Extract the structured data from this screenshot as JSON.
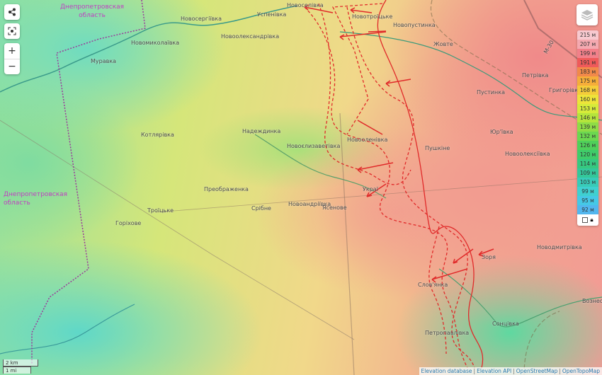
{
  "regions": [
    {
      "line1": "Днепропетровская",
      "line2": "область"
    },
    {
      "line1": "Днепропетровская",
      "line2": "область"
    }
  ],
  "places": [
    "Новосергіївка",
    "Успенівка",
    "Новомиколаївка",
    "Новоолександрівка",
    "Муравка",
    "Новоселівка",
    "Новотроїцьке",
    "Новопустинка",
    "Жовте",
    "Петрівка",
    "Григорівка",
    "Пустинка",
    "М-30",
    "Котлярівка",
    "Надеждинка",
    "Новоєлизаветівка",
    "Новооленівка",
    "Пушкіне",
    "Юр'ївка",
    "Новоолексіївка",
    "Преображенка",
    "Украї",
    "Новоандріївка",
    "Срібне",
    "Ясенове",
    "Троїцьке",
    "Горіхове",
    "Новодмитрівка",
    "Зоря",
    "Слов'янка",
    "Сонцівка",
    "Петропавлівка",
    "Вознесе"
  ],
  "controls": {
    "share_icon": "share-icon",
    "locate_icon": "locate-icon",
    "zoom_in": "+",
    "zoom_out": "−"
  },
  "legend": {
    "items": [
      "215 м",
      "207 м",
      "199 м",
      "191 м",
      "183 м",
      "175 м",
      "168 м",
      "160 м",
      "153 м",
      "146 м",
      "139 м",
      "132 м",
      "126 м",
      "120 м",
      "114 м",
      "109 м",
      "103 м",
      "99 м",
      "95 м",
      "92 м"
    ],
    "colors": [
      "#f7c9cf",
      "#f4a9b0",
      "#f2808a",
      "#ef5a5a",
      "#f2894a",
      "#f5ad3a",
      "#f5cc3a",
      "#eee43a",
      "#d6eb3a",
      "#b5e43c",
      "#8fdc46",
      "#6cd850",
      "#4fd05a",
      "#3fcc6a",
      "#36c880",
      "#34c79a",
      "#38cbb8",
      "#3fd0d0",
      "#45c8e6",
      "#52b6ee"
    ]
  },
  "scale": {
    "km": "2 km",
    "mi": "1 mi"
  },
  "attribution": [
    "Elevation database",
    "Elevation API",
    "OpenStreetMap",
    "OpenTopoMap"
  ],
  "front_color": "#e02a2a"
}
